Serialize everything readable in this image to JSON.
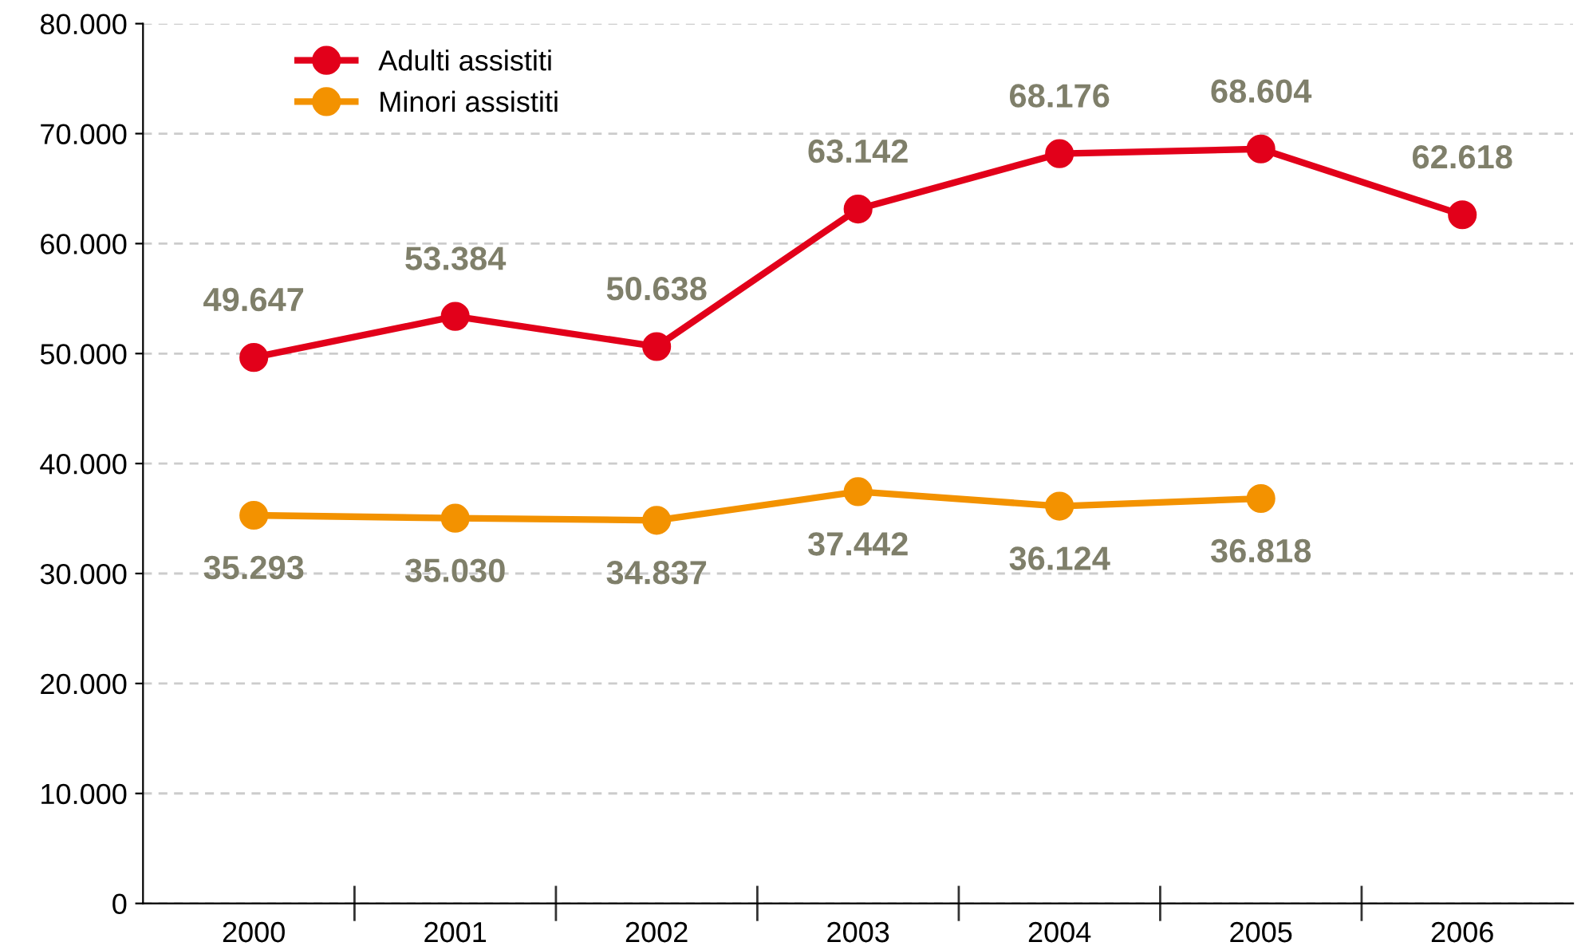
{
  "chart_data": {
    "type": "line",
    "categories": [
      "2000",
      "2001",
      "2002",
      "2003",
      "2004",
      "2005",
      "2006"
    ],
    "series": [
      {
        "name": "Adulti assistiti",
        "color": "#e2001a",
        "values": [
          49647,
          53384,
          50638,
          63142,
          68176,
          68604,
          62618
        ],
        "value_labels": [
          "49.647",
          "53.384",
          "50.638",
          "63.142",
          "68.176",
          "68.604",
          "62.618"
        ]
      },
      {
        "name": "Minori assistiti",
        "color": "#f39200",
        "values": [
          35293,
          35030,
          34837,
          37442,
          36124,
          36818,
          null
        ],
        "value_labels": [
          "35.293",
          "35.030",
          "34.837",
          "37.442",
          "36.124",
          "36.818",
          null
        ]
      }
    ],
    "ylim": [
      0,
      80000
    ],
    "yticks": [
      {
        "value": 0,
        "label": "0"
      },
      {
        "value": 10000,
        "label": "10.000"
      },
      {
        "value": 20000,
        "label": "20.000"
      },
      {
        "value": 30000,
        "label": "30.000"
      },
      {
        "value": 40000,
        "label": "40.000"
      },
      {
        "value": 50000,
        "label": "50.000"
      },
      {
        "value": 60000,
        "label": "60.000"
      },
      {
        "value": 70000,
        "label": "70.000"
      },
      {
        "value": 80000,
        "label": "80.000"
      }
    ],
    "grid": "y",
    "legend": "top left",
    "marker": "circle",
    "line_style": "solid"
  }
}
